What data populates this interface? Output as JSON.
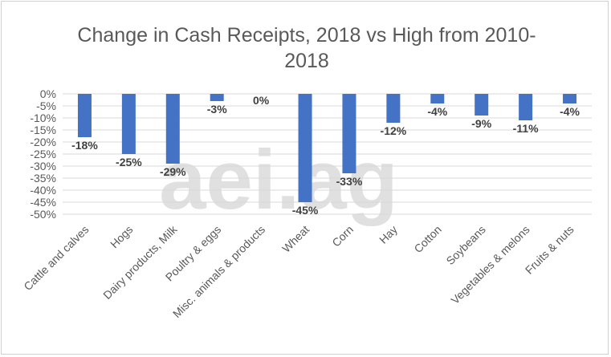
{
  "watermark": "aei.ag",
  "chart_data": {
    "type": "bar",
    "title_lines": [
      "Change in Cash Receipts, 2018 vs High from 2010-",
      "2018"
    ],
    "categories": [
      "Cattle and calves",
      "Hogs",
      "Dairy products, Milk",
      "Poultry & eggs",
      "Misc. animals & products",
      "Wheat",
      "Corn",
      "Hay",
      "Cotton",
      "Soybeans",
      "Vegetables & melons",
      "Fruits & nuts"
    ],
    "values": [
      -18,
      -25,
      -29,
      -3,
      0,
      -45,
      -33,
      -12,
      -4,
      -9,
      -11,
      -4
    ],
    "value_labels": [
      "-18%",
      "-25%",
      "-29%",
      "-3%",
      "0%",
      "-45%",
      "-33%",
      "-12%",
      "-4%",
      "-9%",
      "-11%",
      "-4%"
    ],
    "y_ticks": [
      "0%",
      "-5%",
      "-10%",
      "-15%",
      "-20%",
      "-25%",
      "-30%",
      "-35%",
      "-40%",
      "-45%",
      "-50%"
    ],
    "ylim": [
      -50,
      0
    ],
    "grid": true,
    "bar_color": "#4472C4"
  }
}
